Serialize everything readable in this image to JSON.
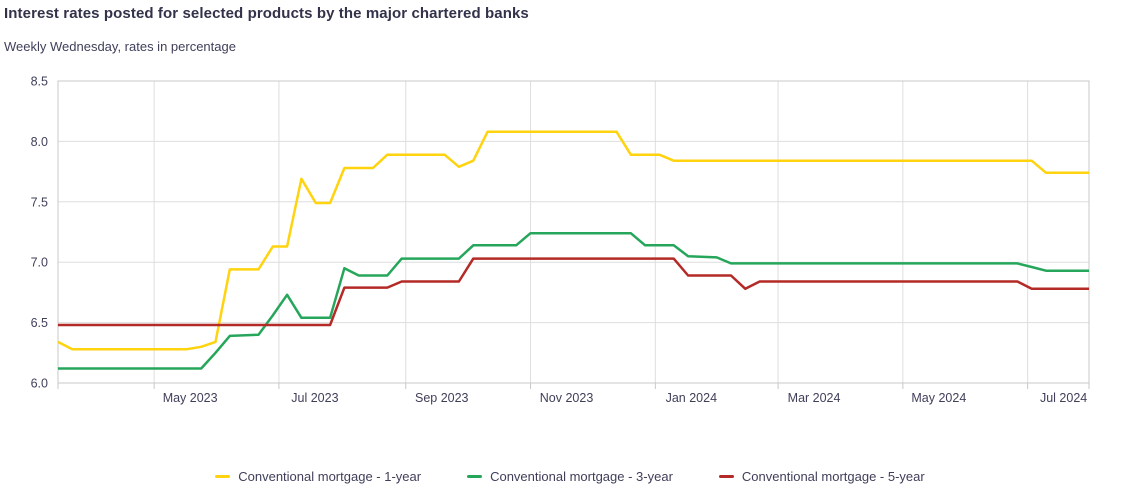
{
  "header": {
    "title": "Interest rates posted for selected products by the major chartered banks",
    "subtitle": "Weekly Wednesday, rates in percentage"
  },
  "chart_data": {
    "type": "line",
    "title": "Interest rates posted for selected products by the major chartered banks",
    "subtitle": "Weekly Wednesday, rates in percentage",
    "unit": "percent",
    "frequency": "Weekly (Wednesday)",
    "grid": true,
    "legend_position": "bottom",
    "x_axis": {
      "start_date": "2023-03-15",
      "end_date": "2024-07-31",
      "gridline_dates": [
        "2023-05-01",
        "2023-07-01",
        "2023-09-01",
        "2023-11-01",
        "2024-01-01",
        "2024-03-01",
        "2024-05-01",
        "2024-07-01"
      ],
      "tick_labels": [
        "May 2023",
        "Jul 2023",
        "Sep 2023",
        "Nov 2023",
        "Jan 2024",
        "Mar 2024",
        "May 2024",
        "Jul 2024"
      ]
    },
    "y_axis": {
      "min": 6.0,
      "max": 8.5,
      "step": 0.5,
      "tick_labels": [
        "6.0",
        "6.5",
        "7.0",
        "7.5",
        "8.0",
        "8.5"
      ]
    },
    "series": [
      {
        "name": "Conventional mortgage - 1-year",
        "color": "#FFD30E",
        "points": [
          [
            "2023-03-15",
            6.34
          ],
          [
            "2023-03-22",
            6.28
          ],
          [
            "2023-05-17",
            6.28
          ],
          [
            "2023-05-24",
            6.3
          ],
          [
            "2023-05-31",
            6.34
          ],
          [
            "2023-06-07",
            6.94
          ],
          [
            "2023-06-21",
            6.94
          ],
          [
            "2023-06-28",
            7.13
          ],
          [
            "2023-07-05",
            7.13
          ],
          [
            "2023-07-12",
            7.69
          ],
          [
            "2023-07-19",
            7.49
          ],
          [
            "2023-07-26",
            7.49
          ],
          [
            "2023-08-02",
            7.78
          ],
          [
            "2023-08-16",
            7.78
          ],
          [
            "2023-08-23",
            7.89
          ],
          [
            "2023-09-20",
            7.89
          ],
          [
            "2023-09-27",
            7.79
          ],
          [
            "2023-10-04",
            7.84
          ],
          [
            "2023-10-11",
            8.08
          ],
          [
            "2023-12-13",
            8.08
          ],
          [
            "2023-12-20",
            7.89
          ],
          [
            "2024-01-03",
            7.89
          ],
          [
            "2024-01-10",
            7.84
          ],
          [
            "2024-07-03",
            7.84
          ],
          [
            "2024-07-10",
            7.74
          ],
          [
            "2024-07-31",
            7.74
          ]
        ]
      },
      {
        "name": "Conventional mortgage - 3-year",
        "color": "#26A65B",
        "points": [
          [
            "2023-03-15",
            6.12
          ],
          [
            "2023-05-24",
            6.12
          ],
          [
            "2023-05-31",
            6.25
          ],
          [
            "2023-06-07",
            6.39
          ],
          [
            "2023-06-21",
            6.4
          ],
          [
            "2023-06-28",
            6.56
          ],
          [
            "2023-07-05",
            6.73
          ],
          [
            "2023-07-12",
            6.54
          ],
          [
            "2023-07-26",
            6.54
          ],
          [
            "2023-08-02",
            6.95
          ],
          [
            "2023-08-09",
            6.89
          ],
          [
            "2023-08-23",
            6.89
          ],
          [
            "2023-08-30",
            7.03
          ],
          [
            "2023-09-27",
            7.03
          ],
          [
            "2023-10-04",
            7.14
          ],
          [
            "2023-10-25",
            7.14
          ],
          [
            "2023-11-01",
            7.24
          ],
          [
            "2023-12-20",
            7.24
          ],
          [
            "2023-12-27",
            7.14
          ],
          [
            "2024-01-10",
            7.14
          ],
          [
            "2024-01-17",
            7.05
          ],
          [
            "2024-01-31",
            7.04
          ],
          [
            "2024-02-07",
            6.99
          ],
          [
            "2024-06-26",
            6.99
          ],
          [
            "2024-07-03",
            6.96
          ],
          [
            "2024-07-10",
            6.93
          ],
          [
            "2024-07-31",
            6.93
          ]
        ]
      },
      {
        "name": "Conventional mortgage - 5-year",
        "color": "#B42A26",
        "points": [
          [
            "2023-03-15",
            6.48
          ],
          [
            "2023-07-26",
            6.48
          ],
          [
            "2023-08-02",
            6.79
          ],
          [
            "2023-08-23",
            6.79
          ],
          [
            "2023-08-30",
            6.84
          ],
          [
            "2023-09-27",
            6.84
          ],
          [
            "2023-10-04",
            7.03
          ],
          [
            "2024-01-10",
            7.03
          ],
          [
            "2024-01-17",
            6.89
          ],
          [
            "2024-02-07",
            6.89
          ],
          [
            "2024-02-14",
            6.78
          ],
          [
            "2024-02-21",
            6.84
          ],
          [
            "2024-06-26",
            6.84
          ],
          [
            "2024-07-03",
            6.78
          ],
          [
            "2024-07-31",
            6.78
          ]
        ]
      }
    ],
    "style": {
      "gridline_color": "#dedede",
      "border_color": "#c8c8c8",
      "tick_text_color": "#3f3f5a",
      "line_width": 2.5
    }
  }
}
